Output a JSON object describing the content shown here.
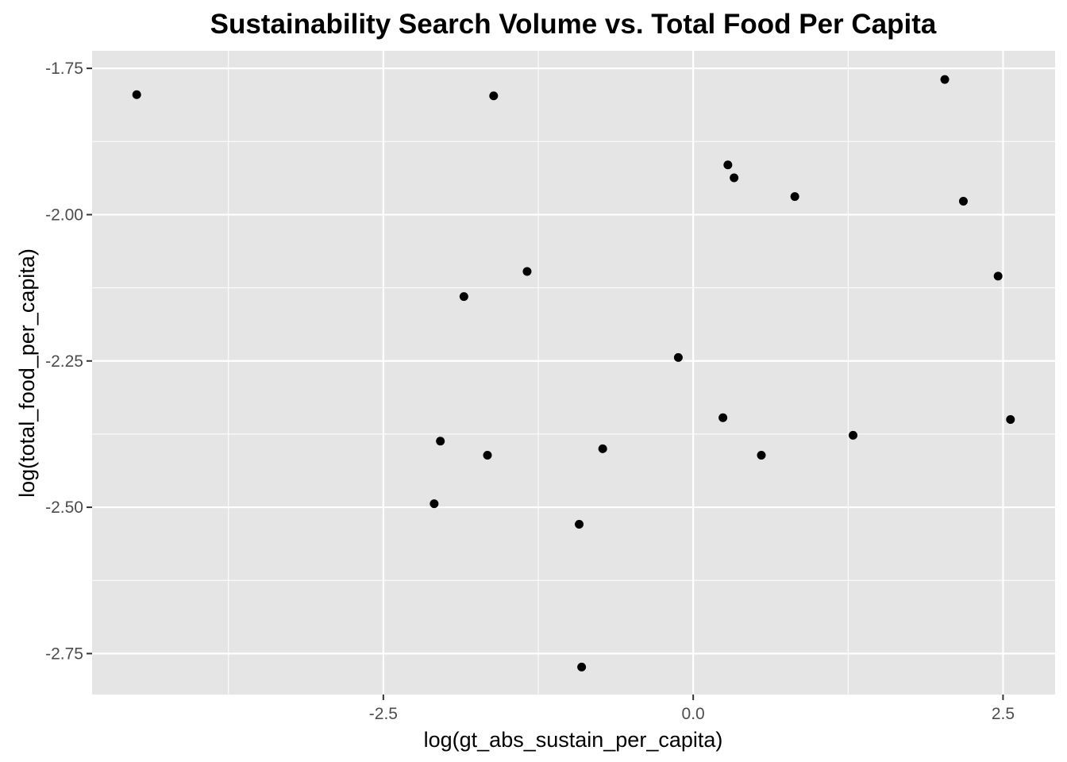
{
  "chart_data": {
    "type": "scatter",
    "title": "Sustainability Search Volume vs. Total Food Per Capita",
    "xlabel": "log(gt_abs_sustain_per_capita)",
    "ylabel": "log(total_food_per_capita)",
    "xlim": [
      -4.85,
      2.92
    ],
    "ylim": [
      -2.82,
      -1.72
    ],
    "x_ticks": [
      -2.5,
      0.0,
      2.5
    ],
    "x_tick_labels": [
      "-2.5",
      "0.0",
      "2.5"
    ],
    "y_ticks": [
      -1.75,
      -2.0,
      -2.25,
      -2.5,
      -2.75
    ],
    "y_tick_labels": [
      "-1.75",
      "-2.00",
      "-2.25",
      "-2.50",
      "-2.75"
    ],
    "grid": true,
    "background": "#e5e5e5",
    "grid_color": "#ffffff",
    "point_color": "#000000",
    "points": [
      {
        "x": -4.49,
        "y": -1.795
      },
      {
        "x": -1.61,
        "y": -1.797
      },
      {
        "x": 2.03,
        "y": -1.769
      },
      {
        "x": 0.28,
        "y": -1.915
      },
      {
        "x": 0.33,
        "y": -1.937
      },
      {
        "x": 0.82,
        "y": -1.969
      },
      {
        "x": 2.18,
        "y": -1.977
      },
      {
        "x": -1.34,
        "y": -2.097
      },
      {
        "x": -1.85,
        "y": -2.14
      },
      {
        "x": 2.46,
        "y": -2.105
      },
      {
        "x": -0.12,
        "y": -2.244
      },
      {
        "x": 0.24,
        "y": -2.347
      },
      {
        "x": 2.56,
        "y": -2.35
      },
      {
        "x": 1.29,
        "y": -2.377
      },
      {
        "x": -2.04,
        "y": -2.387
      },
      {
        "x": -0.73,
        "y": -2.4
      },
      {
        "x": -1.66,
        "y": -2.411
      },
      {
        "x": 0.55,
        "y": -2.411
      },
      {
        "x": -2.09,
        "y": -2.494
      },
      {
        "x": -0.92,
        "y": -2.529
      },
      {
        "x": -0.9,
        "y": -2.773
      }
    ]
  }
}
